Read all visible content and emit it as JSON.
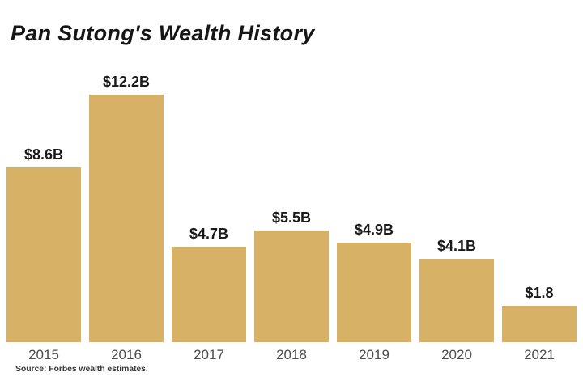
{
  "page": {
    "background_color": "#ffffff"
  },
  "header": {
    "title": "Pan Sutong's Wealth History"
  },
  "footer": {
    "source_note": "Source: Forbes wealth estimates."
  },
  "colors": {
    "bar": "#d7b166",
    "title_text": "#161616",
    "value_label_text": "#1b1b1b",
    "axis_label_text": "#4d4d4d",
    "source_text": "#3a3a3a"
  },
  "chart_data": {
    "type": "bar",
    "title": "Pan Sutong's Wealth History",
    "categories": [
      "2015",
      "2016",
      "2017",
      "2018",
      "2019",
      "2020",
      "2021"
    ],
    "values": [
      8.6,
      12.2,
      4.7,
      5.5,
      4.9,
      4.1,
      1.8
    ],
    "data_labels": [
      "$8.6B",
      "$12.2B",
      "$4.7B",
      "$5.5B",
      "$4.9B",
      "$4.1B",
      "$1.8"
    ],
    "xlabel": "",
    "ylabel": "",
    "ylim": [
      0,
      12.2
    ],
    "grid": false,
    "value_axis_visible": false,
    "legend_position": "none",
    "bar_color": "#d7b166",
    "source": "Source: Forbes wealth estimates."
  }
}
